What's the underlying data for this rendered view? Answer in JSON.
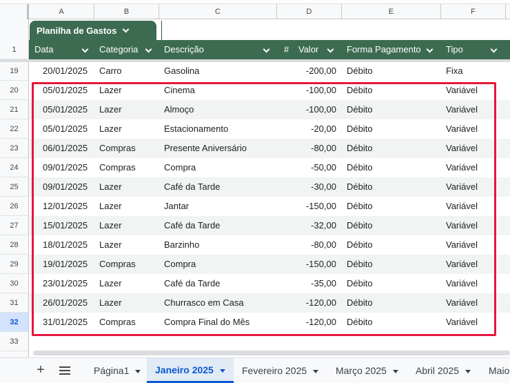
{
  "columns": [
    "A",
    "B",
    "C",
    "D",
    "E",
    "F"
  ],
  "table": {
    "name": "Planilha de Gastos",
    "headers": {
      "data": "Data",
      "categoria": "Categoria",
      "descricao": "Descrição",
      "hash": "#",
      "valor": "Valor",
      "forma": "Forma Pagamento",
      "tipo": "Tipo"
    }
  },
  "row_numbers": [
    "1",
    "19",
    "20",
    "21",
    "22",
    "23",
    "24",
    "25",
    "26",
    "27",
    "28",
    "29",
    "30",
    "31",
    "32",
    "33"
  ],
  "selected_row": "32",
  "rows": [
    [
      "20/01/2025",
      "Carro",
      "Gasolina",
      "-200,00",
      "Débito",
      "Fixa"
    ],
    [
      "05/01/2025",
      "Lazer",
      "Cinema",
      "-100,00",
      "Débito",
      "Variável"
    ],
    [
      "05/01/2025",
      "Lazer",
      "Almoço",
      "-100,00",
      "Débito",
      "Variável"
    ],
    [
      "05/01/2025",
      "Lazer",
      "Estacionamento",
      "-20,00",
      "Débito",
      "Variável"
    ],
    [
      "06/01/2025",
      "Compras",
      "Presente Aniversário",
      "-80,00",
      "Débito",
      "Variável"
    ],
    [
      "09/01/2025",
      "Compras",
      "Compra",
      "-50,00",
      "Débito",
      "Variável"
    ],
    [
      "09/01/2025",
      "Lazer",
      "Café da Tarde",
      "-30,00",
      "Débito",
      "Variável"
    ],
    [
      "12/01/2025",
      "Lazer",
      "Jantar",
      "-150,00",
      "Débito",
      "Variável"
    ],
    [
      "15/01/2025",
      "Lazer",
      "Café da Tarde",
      "-32,00",
      "Débito",
      "Variável"
    ],
    [
      "18/01/2025",
      "Lazer",
      "Barzinho",
      "-80,00",
      "Débito",
      "Variável"
    ],
    [
      "19/01/2025",
      "Compras",
      "Compra",
      "-150,00",
      "Débito",
      "Variável"
    ],
    [
      "23/01/2025",
      "Lazer",
      "Café da Tarde",
      "-35,00",
      "Débito",
      "Variável"
    ],
    [
      "26/01/2025",
      "Lazer",
      "Churrasco em Casa",
      "-120,00",
      "Débito",
      "Variável"
    ],
    [
      "31/01/2025",
      "Compras",
      "Compra Final do Mês",
      "-120,00",
      "Débito",
      "Variável"
    ]
  ],
  "sheet_tabs": [
    {
      "label": "Página1",
      "active": false
    },
    {
      "label": "Janeiro 2025",
      "active": true
    },
    {
      "label": "Fevereiro 2025",
      "active": false
    },
    {
      "label": "Março 2025",
      "active": false
    },
    {
      "label": "Abril 2025",
      "active": false
    },
    {
      "label": "Maio",
      "active": false
    }
  ],
  "colors": {
    "header_bg": "#3d6b52",
    "alt_row_bg": "#f1f4f2",
    "highlight_border": "#e3173c",
    "active_tab": "#0b57d0"
  }
}
